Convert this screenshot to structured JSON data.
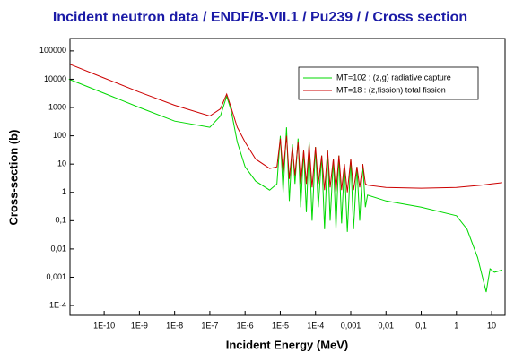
{
  "chart_data": {
    "type": "line",
    "title": "Incident neutron data / ENDF/B-VII.1 / Pu239 / / Cross section",
    "x_label": "Incident Energy (MeV)",
    "y_label": "Cross-section (b)",
    "xscale": "log",
    "yscale": "log",
    "legend": "upper right",
    "xlim": [
      1.07e-11,
      24
    ],
    "ylim": [
      4.5e-05,
      275000
    ],
    "xticks": [
      {
        "value": 1e-10,
        "label": "1E-10"
      },
      {
        "value": 1e-09,
        "label": "1E-9"
      },
      {
        "value": 1e-08,
        "label": "1E-8"
      },
      {
        "value": 1e-07,
        "label": "1E-7"
      },
      {
        "value": 1e-06,
        "label": "1E-6"
      },
      {
        "value": 1e-05,
        "label": "1E-5"
      },
      {
        "value": 0.0001,
        "label": "1E-4"
      },
      {
        "value": 0.001,
        "label": "0,001"
      },
      {
        "value": 0.01,
        "label": "0,01"
      },
      {
        "value": 0.1,
        "label": "0,1"
      },
      1,
      10
    ],
    "yticks": [
      100000,
      10000,
      1000,
      100,
      10,
      1,
      {
        "value": 0.1,
        "label": "0,1"
      },
      {
        "value": 0.01,
        "label": "0,01"
      },
      {
        "value": 0.001,
        "label": "0,001"
      },
      {
        "value": 0.0001,
        "label": "1E-4"
      }
    ],
    "series": [
      {
        "name": "MT=102 : (z,g) radiative capture",
        "color": "#00d800",
        "x": [
          1e-11,
          1e-10,
          1e-09,
          1e-08,
          1e-07,
          2e-07,
          3e-07,
          4e-07,
          6e-07,
          1e-06,
          2e-06,
          5e-06,
          8e-06,
          1e-05,
          1.2e-05,
          1.5e-05,
          1.8e-05,
          2.2e-05,
          2.6e-05,
          3.2e-05,
          3.8e-05,
          4.6e-05,
          5.5e-05,
          6.6e-05,
          8e-05,
          0.0001,
          0.00012,
          0.00015,
          0.00018,
          0.00022,
          0.00026,
          0.00032,
          0.00038,
          0.00046,
          0.00055,
          0.00066,
          0.0008,
          0.001,
          0.0012,
          0.0015,
          0.0018,
          0.0022,
          0.0026,
          0.003,
          0.01,
          0.1,
          1,
          2,
          4,
          7,
          9,
          12,
          20
        ],
        "values": [
          10000,
          3200,
          1000,
          330,
          200,
          500,
          2500,
          800,
          60,
          8,
          2.5,
          1.2,
          2,
          100,
          1,
          200,
          0.5,
          50,
          2,
          80,
          0.3,
          30,
          0.2,
          60,
          0.1,
          40,
          0.3,
          20,
          0.05,
          30,
          0.1,
          15,
          0.05,
          20,
          0.08,
          10,
          0.04,
          15,
          0.05,
          8,
          0.1,
          10,
          0.3,
          0.8,
          0.5,
          0.3,
          0.15,
          0.05,
          0.005,
          0.0003,
          0.002,
          0.0015,
          0.0018
        ]
      },
      {
        "name": "MT=18 : (z,fission) total fission",
        "color": "#cc0000",
        "x": [
          1e-11,
          1e-10,
          1e-09,
          1e-08,
          1e-07,
          2e-07,
          3e-07,
          4e-07,
          6e-07,
          1e-06,
          2e-06,
          5e-06,
          8e-06,
          1e-05,
          1.2e-05,
          1.5e-05,
          1.8e-05,
          2.2e-05,
          2.6e-05,
          3.2e-05,
          3.8e-05,
          4.6e-05,
          5.5e-05,
          6.6e-05,
          8e-05,
          0.0001,
          0.00012,
          0.00015,
          0.00018,
          0.00022,
          0.00026,
          0.00032,
          0.00038,
          0.00046,
          0.00055,
          0.00066,
          0.0008,
          0.001,
          0.0012,
          0.0015,
          0.0018,
          0.0022,
          0.0026,
          0.003,
          0.01,
          0.1,
          1,
          5,
          10,
          20
        ],
        "values": [
          35000,
          11000,
          3500,
          1200,
          500,
          900,
          3000,
          1000,
          200,
          60,
          15,
          7,
          8,
          80,
          5,
          100,
          3,
          40,
          4,
          60,
          2,
          30,
          2,
          50,
          1.5,
          40,
          2,
          20,
          1.2,
          30,
          1.5,
          15,
          1,
          20,
          1.2,
          10,
          1,
          15,
          1.2,
          8,
          1.5,
          10,
          2,
          1.8,
          1.5,
          1.4,
          1.5,
          1.8,
          2,
          2.2
        ]
      }
    ]
  }
}
